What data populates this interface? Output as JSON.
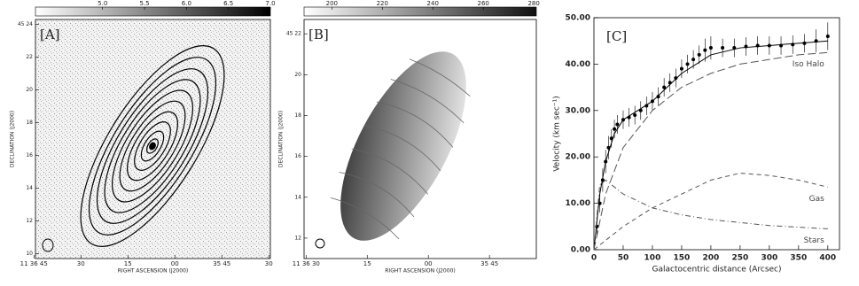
{
  "chart_data": [
    {
      "type": "image",
      "label": "[A]",
      "xlabel": "RIGHT ASCENSION (J2000)",
      "ylabel": "DECLINATION (J2000)",
      "xlim": [
        44.5,
        -30.5
      ],
      "xticks": [
        {
          "value": 45,
          "label": "11 36 45"
        },
        30,
        15,
        {
          "value": 0,
          "label": "00"
        },
        {
          "value": -15,
          "label": "35 45"
        },
        {
          "value": -30,
          "label": "30"
        }
      ],
      "ylim": [
        9.7,
        24.3
      ],
      "yticks": [
        {
          "value": 24,
          "label": "45 24"
        },
        22,
        20,
        18,
        16,
        14,
        12,
        10
      ],
      "colorbar_lim": [
        4.2,
        7.0
      ],
      "colorbar_ticks": [
        {
          "value": 5,
          "label": "5.0"
        },
        {
          "value": 5.5,
          "label": "5.5"
        },
        {
          "value": 6,
          "label": "6.0"
        },
        {
          "value": 6.5,
          "label": "6.5"
        },
        {
          "value": 7,
          "label": "7.0"
        }
      ]
    },
    {
      "type": "image",
      "label": "[B]",
      "xlabel": "RIGHT ASCENSION (J2000)",
      "ylabel": "DECLINATION (J2000)",
      "xlim": [
        30.5,
        -26.5
      ],
      "xticks": [
        {
          "value": 30,
          "label": "11 36 30"
        },
        15,
        {
          "value": 0,
          "label": "00"
        },
        {
          "value": -15,
          "label": "35 45"
        }
      ],
      "ylim": [
        11,
        22.7
      ],
      "yticks": [
        {
          "value": 22,
          "label": "45 22"
        },
        20,
        18,
        16,
        14,
        12
      ],
      "colorbar_lim": [
        189,
        281
      ],
      "colorbar_ticks": [
        200,
        220,
        240,
        260,
        280
      ]
    },
    {
      "type": "line",
      "label": "[C]",
      "xlabel": "Galactocentric distance (Arcsec)",
      "ylabel": "Velocity (km sec⁻¹)",
      "xlim": [
        0,
        420
      ],
      "xticks": [
        0,
        50,
        100,
        150,
        200,
        250,
        300,
        350,
        400
      ],
      "ylim": [
        0,
        50
      ],
      "yticks": [
        {
          "value": 0,
          "label": "0.00"
        },
        {
          "value": 10,
          "label": "10.00"
        },
        {
          "value": 20,
          "label": "20.00"
        },
        {
          "value": 30,
          "label": "30.00"
        },
        {
          "value": 40,
          "label": "40.00"
        },
        {
          "value": 50,
          "label": "50.00"
        }
      ],
      "series": [
        {
          "style": "points",
          "color": "#000000",
          "x": [
            5,
            10,
            15,
            20,
            25,
            30,
            35,
            40,
            50,
            60,
            70,
            80,
            90,
            100,
            110,
            120,
            130,
            140,
            150,
            160,
            170,
            180,
            190,
            200,
            220,
            240,
            260,
            280,
            300,
            320,
            340,
            360,
            380,
            400
          ],
          "values": [
            5,
            10,
            15,
            19,
            22,
            24,
            26,
            27,
            28,
            28.5,
            29,
            30,
            31,
            32,
            33,
            35,
            36,
            37,
            39,
            40,
            41,
            42,
            43,
            43.5,
            43.5,
            43.5,
            43.8,
            44,
            44,
            44,
            44.2,
            44.5,
            45,
            46
          ],
          "errors": [
            2,
            2,
            2.5,
            2.5,
            2.5,
            2,
            2,
            2,
            2,
            2,
            2,
            2,
            2,
            2,
            2,
            2,
            2,
            2,
            2,
            2,
            2,
            2,
            2.5,
            2.5,
            2,
            2,
            2,
            2,
            2,
            2,
            2,
            2,
            2.5,
            3
          ]
        },
        {
          "style": "solid",
          "color": "#000000",
          "x": [
            0,
            10,
            20,
            35,
            50,
            75,
            100,
            150,
            200,
            250,
            300,
            350,
            400
          ],
          "values": [
            0,
            12,
            19,
            25,
            28,
            30,
            32,
            38,
            42,
            43.5,
            44,
            44.5,
            45
          ]
        },
        {
          "name": "Iso Halo",
          "style": "longdash",
          "color": "#555555",
          "x": [
            0,
            20,
            50,
            100,
            150,
            200,
            250,
            300,
            350,
            400
          ],
          "values": [
            0,
            12,
            22,
            30,
            35,
            38,
            40,
            41,
            42,
            42.5
          ]
        },
        {
          "name": "Gas",
          "style": "dash",
          "color": "#555555",
          "x": [
            0,
            50,
            100,
            150,
            200,
            250,
            300,
            350,
            400
          ],
          "values": [
            0,
            5,
            9,
            12,
            15,
            16.5,
            16,
            15,
            13.5
          ]
        },
        {
          "name": "Stars",
          "style": "dashdot",
          "color": "#555555",
          "x": [
            0,
            10,
            20,
            50,
            100,
            150,
            200,
            300,
            400
          ],
          "values": [
            0,
            14,
            15,
            12,
            9,
            7.5,
            6.5,
            5.2,
            4.5
          ]
        }
      ]
    }
  ]
}
